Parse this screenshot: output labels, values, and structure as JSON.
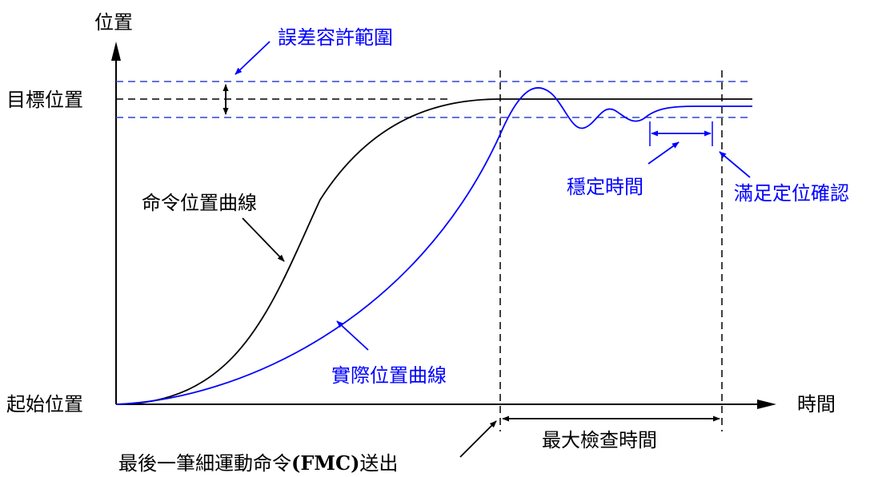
{
  "labels": {
    "y_axis": "位置",
    "x_axis": "時間",
    "target_position": "目標位置",
    "start_position": "起始位置",
    "error_tolerance": "誤差容許範圍",
    "command_curve": "命令位置曲線",
    "actual_curve": "實際位置曲線",
    "settling_time": "穩定時間",
    "positioning_confirmed": "滿足定位確認",
    "max_check_time": "最大檢查時間",
    "fmc_sent_prefix": "最後一筆細運動命令",
    "fmc_sent_abbr": "(FMC)",
    "fmc_sent_suffix": "送出"
  },
  "colors": {
    "black": "#000000",
    "blue": "#0000ff",
    "tolerance_band": "#3344cc"
  }
}
